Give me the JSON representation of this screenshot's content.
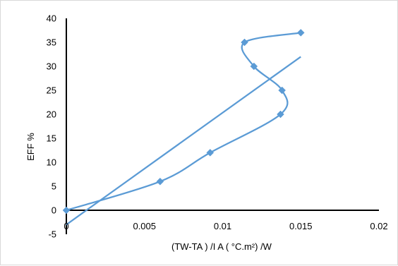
{
  "chart_data": {
    "type": "scatter",
    "xlabel": "(TW-TA ) /I A ( °C.m²) /W",
    "ylabel": "EFF %",
    "xlim": [
      0,
      0.02
    ],
    "ylim": [
      -5,
      40
    ],
    "x_ticks": [
      "0",
      "0.005",
      "0.01",
      "0.015",
      "0.02"
    ],
    "y_ticks": [
      "-5",
      "0",
      "5",
      "10",
      "15",
      "20",
      "25",
      "30",
      "35",
      "40"
    ],
    "grid": false,
    "legend": "none",
    "series": [
      {
        "style": "smooth line with diamond markers",
        "color": "#5b9bd5",
        "points": [
          {
            "x": 0,
            "y": 0
          },
          {
            "x": 0.006,
            "y": 6
          },
          {
            "x": 0.0092,
            "y": 12
          },
          {
            "x": 0.0137,
            "y": 20
          },
          {
            "x": 0.0138,
            "y": 25
          },
          {
            "x": 0.012,
            "y": 30
          },
          {
            "x": 0.0114,
            "y": 35
          },
          {
            "x": 0.015,
            "y": 37
          }
        ]
      },
      {
        "style": "linear trendline",
        "color": "#5b9bd5",
        "points": [
          {
            "x": 0,
            "y": -3
          },
          {
            "x": 0.015,
            "y": 32
          }
        ]
      }
    ]
  }
}
